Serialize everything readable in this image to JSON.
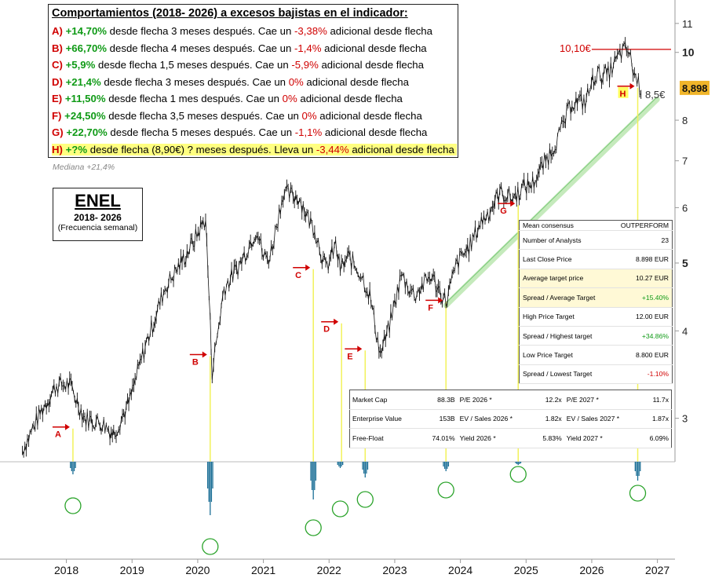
{
  "legend": {
    "title": "Comportamientos (2018- 2026) a excesos bajistas en el indicador:",
    "rows": [
      {
        "label": "A)",
        "gain": "+14,70%",
        "mid": " desde flecha 3 meses después. Cae un ",
        "loss": "-3,38%",
        "tail": " adicional desde flecha"
      },
      {
        "label": "B)",
        "gain": "+66,70%",
        "mid": " desde flecha 4 meses después. Cae un ",
        "loss": "-1,4%",
        "tail": " adicional desde flecha"
      },
      {
        "label": "C)",
        "gain": "+5,9%",
        "mid": " desde flecha 1,5 meses después. Cae un ",
        "loss": "-5,9%",
        "tail": " adicional desde flecha"
      },
      {
        "label": "D)",
        "gain": "+21,4%",
        "mid": " desde flecha 3 meses después. Cae un ",
        "loss": "0%",
        "tail": " adicional desde flecha"
      },
      {
        "label": "E)",
        "gain": "+11,50%",
        "mid": " desde flecha 1 mes después. Cae un ",
        "loss": "0%",
        "tail": " adicional desde flecha"
      },
      {
        "label": "F)",
        "gain": "+24,50%",
        "mid": " desde flecha 3,5 meses después. Cae un ",
        "loss": "0%",
        "tail": " adicional desde flecha"
      },
      {
        "label": "G)",
        "gain": "+22,70%",
        "mid": " desde flecha 5 meses después. Cae un ",
        "loss": "-1,1%",
        "tail": " adicional desde flecha"
      },
      {
        "label": "H)",
        "gain": "+?%",
        "mid": " desde flecha (8,90€) ? meses después. Lleva un ",
        "loss": "-3,44%",
        "tail": " adicional desde flecha"
      }
    ],
    "median": "Mediana +21,4%"
  },
  "ticker": {
    "name": "ENEL",
    "years": "2018- 2026",
    "frequency": "(Frecuencia semanal)"
  },
  "consensus": [
    {
      "k": "Mean consensus",
      "v": "OUTPERFORM",
      "style": "",
      "highlight": false
    },
    {
      "k": "Number of Analysts",
      "v": "23",
      "style": "",
      "highlight": false
    },
    {
      "k": "Last Close Price",
      "v": "8.898 EUR",
      "style": "",
      "highlight": false
    },
    {
      "k": "Average target price",
      "v": "10.27 EUR",
      "style": "",
      "highlight": true
    },
    {
      "k": "Spread / Average Target",
      "v": "+15.40%",
      "style": "pos",
      "highlight": true
    },
    {
      "k": "High Price Target",
      "v": "12.00 EUR",
      "style": "",
      "highlight": false
    },
    {
      "k": "Spread / Highest target",
      "v": "+34.86%",
      "style": "pos",
      "highlight": false
    },
    {
      "k": "Low Price Target",
      "v": "8.800 EUR",
      "style": "",
      "highlight": false
    },
    {
      "k": "Spread / Lowest Target",
      "v": "-1.10%",
      "style": "neg",
      "highlight": false
    }
  ],
  "valuation": [
    [
      "Market Cap",
      "88.3B",
      "P/E 2026 *",
      "12.2x",
      "P/E 2027 *",
      "11.7x"
    ],
    [
      "Enterprise Value",
      "153B",
      "EV / Sales 2026 *",
      "1.82x",
      "EV / Sales 2027 *",
      "1.87x"
    ],
    [
      "Free-Float",
      "74.01%",
      "Yield 2026 *",
      "5.83%",
      "Yield 2027 *",
      "6.09%"
    ]
  ],
  "colors": {
    "up": "#0f9a16",
    "down": "#d00000",
    "price": "#111111",
    "signal_line": "#f2f25a",
    "indicator": "#1b6f96",
    "trend_band": "#bfe8b5",
    "circle": "#2aa32a",
    "last_price_bg": "#f0b52a"
  },
  "chart_data": {
    "type": "line",
    "title": "ENEL",
    "frequency": "weekly",
    "y_scale": "log",
    "y_ticks": [
      3,
      4,
      5,
      6,
      7,
      8,
      10,
      11
    ],
    "y_range": [
      2.6,
      11.4
    ],
    "x_ticks": [
      2018,
      2019,
      2020,
      2021,
      2022,
      2023,
      2024,
      2025,
      2026,
      2027
    ],
    "x_range": [
      2017.3,
      2027.1
    ],
    "series": [
      {
        "x": [
          2017.33,
          2017.6,
          2017.85,
          2018.05,
          2018.28,
          2018.55,
          2018.72,
          2018.95,
          2019.2,
          2019.5,
          2019.8,
          2019.95,
          2020.12,
          2020.19,
          2020.22,
          2020.4,
          2020.65,
          2020.9,
          2021.0,
          2021.1,
          2021.3,
          2021.55,
          2021.68,
          2021.78,
          2021.95,
          2022.1,
          2022.17,
          2022.3,
          2022.5,
          2022.62,
          2022.78,
          2022.9,
          2023.1,
          2023.3,
          2023.55,
          2023.78,
          2023.95,
          2024.15,
          2024.3,
          2024.45,
          2024.6,
          2024.8,
          2024.95,
          2025.1,
          2025.3,
          2025.5,
          2025.7,
          2025.9,
          2026.05,
          2026.25,
          2026.45,
          2026.55,
          2026.65,
          2026.75
        ],
        "y": [
          2.7,
          3.05,
          3.35,
          3.35,
          3.0,
          2.95,
          2.85,
          3.15,
          3.8,
          4.6,
          5.1,
          5.4,
          5.8,
          4.1,
          3.5,
          4.6,
          5.0,
          5.6,
          5.1,
          5.1,
          6.3,
          6.2,
          5.8,
          5.6,
          4.9,
          5.3,
          4.9,
          5.1,
          4.8,
          4.5,
          3.7,
          4.0,
          4.8,
          4.5,
          4.8,
          4.4,
          5.0,
          5.3,
          5.7,
          5.95,
          6.3,
          6.2,
          6.4,
          6.5,
          7.0,
          7.6,
          8.5,
          8.5,
          9.3,
          9.3,
          10.0,
          10.1,
          9.3,
          8.898
        ]
      }
    ],
    "signals": [
      {
        "label": "A",
        "x": 2018.1,
        "y": 2.9
      },
      {
        "label": "B",
        "x": 2020.19,
        "y": 3.68
      },
      {
        "label": "C",
        "x": 2021.76,
        "y": 4.9
      },
      {
        "label": "D",
        "x": 2022.19,
        "y": 4.1
      },
      {
        "label": "E",
        "x": 2022.55,
        "y": 3.75
      },
      {
        "label": "F",
        "x": 2023.78,
        "y": 4.4
      },
      {
        "label": "G",
        "x": 2024.88,
        "y": 6.05
      },
      {
        "label": "H",
        "x": 2026.7,
        "y": 8.9
      }
    ],
    "trend_line": {
      "from": [
        2023.78,
        4.35
      ],
      "to": [
        2026.78,
        8.5
      ],
      "label": "8,5€"
    },
    "resistance": {
      "y": 10.1,
      "x_from": 2026.0,
      "x_to": 2027.2,
      "label": "10,10€"
    },
    "last_price": {
      "value": 8.898,
      "label": "8,898"
    },
    "indicator_spikes": [
      {
        "x": 2018.1,
        "depth": 0.2,
        "circle": 1.0
      },
      {
        "x": 2020.19,
        "depth": 0.85,
        "circle": 2.3
      },
      {
        "x": 2021.76,
        "depth": 0.6,
        "circle": 1.7
      },
      {
        "x": 2022.17,
        "depth": 0.1,
        "circle": 1.1
      },
      {
        "x": 2022.55,
        "depth": 0.25,
        "circle": 0.8
      },
      {
        "x": 2023.78,
        "depth": 0.15,
        "circle": 0.5
      },
      {
        "x": 2024.88,
        "depth": 0.05,
        "circle": 0.0
      },
      {
        "x": 2026.7,
        "depth": 0.3,
        "circle": 0.6
      }
    ]
  }
}
